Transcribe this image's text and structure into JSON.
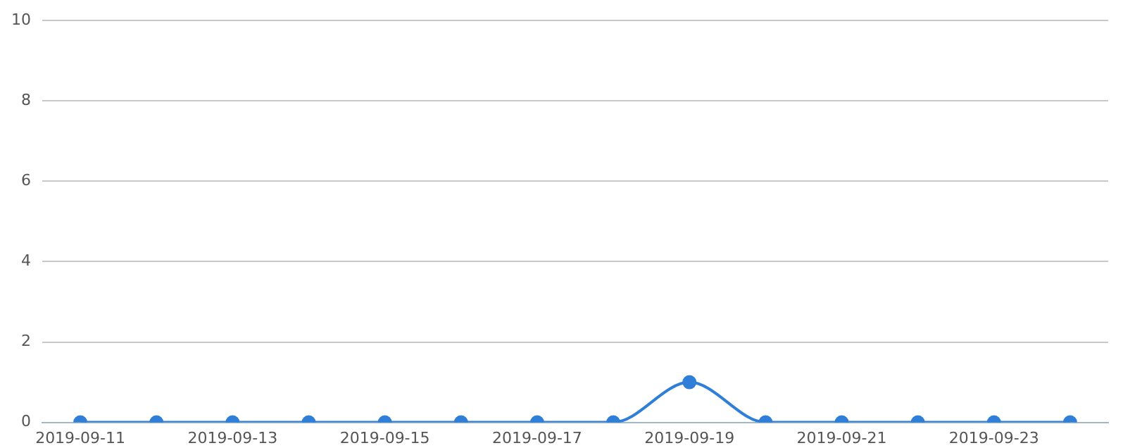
{
  "chart_data": {
    "type": "line",
    "categories": [
      "2019-09-11",
      null,
      "2019-09-13",
      null,
      "2019-09-15",
      null,
      "2019-09-17",
      null,
      "2019-09-19",
      null,
      "2019-09-21",
      null,
      "2019-09-23",
      null
    ],
    "series": [
      {
        "color": "#2f7fd8",
        "values": [
          0,
          0,
          0,
          0,
          0,
          0,
          0,
          0,
          1,
          0,
          0,
          0,
          0,
          0
        ]
      }
    ],
    "ylim": [
      0,
      10
    ],
    "yticks": [
      0,
      2,
      4,
      6,
      8,
      10
    ],
    "grid": "y",
    "legend": false,
    "marker": "circle",
    "line_style": "solid"
  }
}
